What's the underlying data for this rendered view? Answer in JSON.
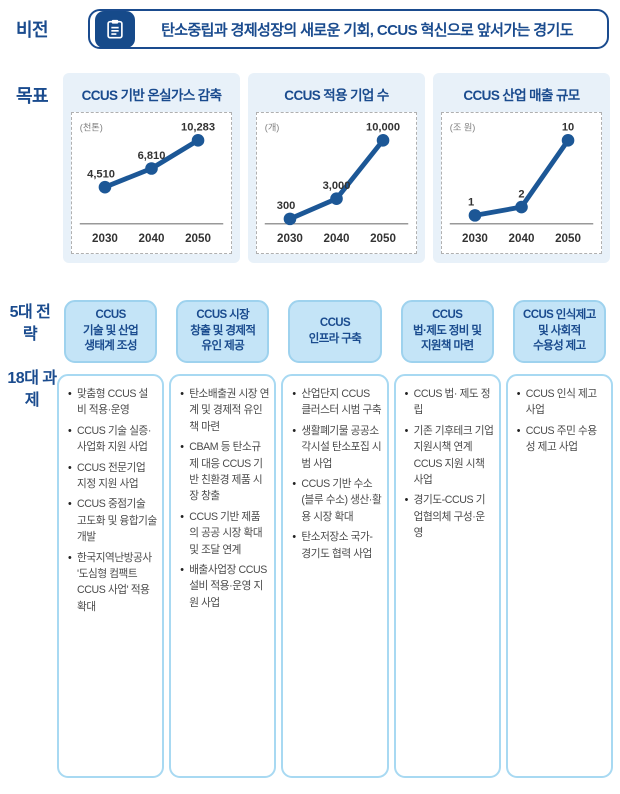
{
  "vision": {
    "label": "비전",
    "icon": "clipboard-icon",
    "text": "탄소중립과 경제성장의 새로운 기회, CCUS 혁신으로 앞서가는 경기도"
  },
  "goals": {
    "label": "목표"
  },
  "chart_data": [
    {
      "type": "line",
      "title": "CCUS 기반 온실가스 감축",
      "unit": "(천톤)",
      "x": [
        "2030",
        "2040",
        "2050"
      ],
      "values": [
        4510,
        6810,
        10283
      ],
      "value_labels": [
        "4,510",
        "6,810",
        "10,283"
      ],
      "ylim": [
        0,
        10283
      ],
      "line_color": "#1c5796"
    },
    {
      "type": "line",
      "title": "CCUS 적용 기업 수",
      "unit": "(개)",
      "x": [
        "2030",
        "2040",
        "2050"
      ],
      "values": [
        300,
        3000,
        10000
      ],
      "value_labels": [
        "300",
        "3,000",
        "10,000"
      ],
      "ylim": [
        0,
        10000
      ],
      "line_color": "#1c5796"
    },
    {
      "type": "line",
      "title": "CCUS 산업 매출 규모",
      "unit": "(조 원)",
      "x": [
        "2030",
        "2040",
        "2050"
      ],
      "values": [
        1,
        2,
        10
      ],
      "value_labels": [
        "1",
        "2",
        "10"
      ],
      "ylim": [
        0,
        10
      ],
      "line_color": "#1c5796"
    }
  ],
  "strategies": {
    "strategy_label": "5대 전략",
    "tasks_label": "18대 과제",
    "columns": [
      {
        "title": "CCUS\n기술 및 산업\n생태계 조성",
        "tasks": [
          "맞춤형 CCUS 설비 적용·운영",
          "CCUS 기술 실증·사업화 지원 사업",
          "CCUS 전문기업 지정 지원 사업",
          "CCUS 중점기술 고도화 및 융합기술 개발",
          "한국지역난방공사 '도심형 컴팩트 CCUS 사업' 적용 확대"
        ]
      },
      {
        "title": "CCUS 시장\n창출 및 경제적\n유인 제공",
        "tasks": [
          "탄소배출권 시장 연계 및 경제적 유인책 마련",
          "CBAM 등 탄소규제 대응 CCUS 기반 친환경 제품 시장 창출",
          "CCUS 기반 제품의 공공 시장 확대 및 조달 연계",
          "배출사업장 CCUS 설비 적용·운영 지원 사업"
        ]
      },
      {
        "title": "CCUS\n인프라 구축",
        "tasks": [
          "산업단지 CCUS 클러스터 시범 구축",
          "생활폐기물 공공소각시설 탄소포집 시범 사업",
          "CCUS 기반 수소(블루 수소) 생산·활용 시장 확대",
          "탄소저장소 국가-경기도 협력 사업"
        ]
      },
      {
        "title": "CCUS\n법·제도 정비 및\n지원책 마련",
        "tasks": [
          "CCUS 법· 제도 정립",
          "기존 기후테크 기업 지원시책 연계 CCUS 지원 시책 사업",
          "경기도-CCUS 기업협의체 구성·운영"
        ]
      },
      {
        "title": "CCUS 인식제고\n및 사회적\n수용성 제고",
        "tasks": [
          "CCUS 인식 제고 사업",
          "CCUS 주민 수용성 제고 사업"
        ]
      }
    ]
  },
  "colors": {
    "navy": "#1a4b8e",
    "line_blue": "#1c5796",
    "card_bg": "#e8f1f9",
    "header_fill": "#c4e4f7",
    "header_border": "#9ed2ee",
    "task_border": "#a8d9f2",
    "axis_gray": "#999999",
    "label_dark": "#333333"
  }
}
